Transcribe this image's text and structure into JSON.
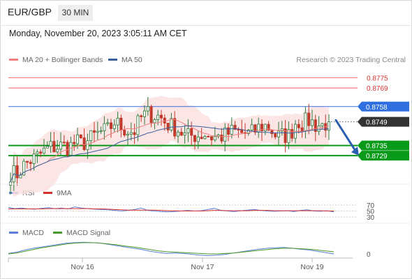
{
  "header": {
    "pair": "EUR/GBP",
    "timeframe": "30 MIN",
    "datetime": "Monday, November 20, 2023 3:05:11 AM CET"
  },
  "legend": {
    "ma20_label": "MA 20 + Bollinger Bands",
    "ma50_label": "MA 50",
    "credit": "Research © 2023 Trading Central"
  },
  "rsi_legend": {
    "rsi_label": "RSI",
    "ma_label": "9MA"
  },
  "macd_legend": {
    "macd_label": "MACD",
    "signal_label": "MACD Signal"
  },
  "colors": {
    "ma20": "#f08080",
    "ma50": "#3a5f9e",
    "bollinger_fill": "#fbe0e0",
    "resistance": "#f06060",
    "pivot": "#3b6fe0",
    "support": "#0a9a1a",
    "up_candle": "#2b7a3a",
    "down_candle": "#c0392b",
    "arrow": "#2a5fb0",
    "rsi": "#5b7fd6",
    "rsi_ma": "#d63030",
    "macd": "#5b7fd6",
    "macd_signal": "#4a9a2a"
  },
  "chart_data": [
    {
      "type": "candlestick",
      "title": "EUR/GBP 30 MIN",
      "x_tick_labels": [
        "Nov 16",
        "Nov 17",
        "Nov 19"
      ],
      "y_range": [
        0.8713,
        0.8781
      ],
      "levels": [
        {
          "label": "0.8775",
          "value": 0.8775,
          "kind": "resistance"
        },
        {
          "label": "0.8769",
          "value": 0.8769,
          "kind": "resistance"
        },
        {
          "label": "0.8758",
          "value": 0.8758,
          "kind": "pivot"
        },
        {
          "label": "0.8749",
          "value": 0.8749,
          "kind": "last"
        },
        {
          "label": "0.8735",
          "value": 0.8735,
          "kind": "support"
        },
        {
          "label": "0.8729",
          "value": 0.8729,
          "kind": "support"
        }
      ],
      "forecast": {
        "from": 0.875,
        "to": 0.8729,
        "direction": "down"
      },
      "close_path": [
        0.8719,
        0.8718,
        0.8723,
        0.8726,
        0.8728,
        0.8731,
        0.8734,
        0.8734,
        0.8735,
        0.8734,
        0.8737,
        0.8736,
        0.8738,
        0.8741,
        0.8743,
        0.8744,
        0.8749,
        0.8746,
        0.8744,
        0.8743,
        0.8751,
        0.8754,
        0.8753,
        0.8752,
        0.8748,
        0.8746,
        0.8744,
        0.874,
        0.8741,
        0.8741,
        0.8742,
        0.874,
        0.874,
        0.8741,
        0.8743,
        0.8743,
        0.8742,
        0.8742,
        0.8745,
        0.8747,
        0.8745,
        0.874,
        0.8741,
        0.8741,
        0.875,
        0.8748,
        0.875,
        0.8747,
        0.8747,
        0.8749
      ]
    },
    {
      "type": "line",
      "title": "RSI",
      "y_tick_labels": [
        "70",
        "50",
        "30"
      ],
      "y_range": [
        20,
        80
      ],
      "series": [
        {
          "name": "RSI",
          "values": [
            62,
            58,
            60,
            57,
            56,
            59,
            61,
            58,
            60,
            57,
            64,
            60,
            58,
            56,
            55,
            54,
            52,
            50,
            52,
            55,
            60,
            52,
            50,
            48,
            47,
            48,
            50,
            52,
            50,
            51,
            55,
            59,
            52,
            50,
            48,
            51,
            53,
            55,
            52,
            50,
            49,
            50,
            51,
            48,
            52,
            54,
            50,
            49,
            51,
            47
          ]
        },
        {
          "name": "9MA",
          "values": [
            57,
            57,
            57,
            57,
            57,
            57,
            58,
            58,
            58,
            58,
            58,
            58,
            58,
            57,
            57,
            56,
            55,
            54,
            53,
            53,
            53,
            53,
            53,
            52,
            51,
            51,
            50,
            50,
            50,
            50,
            51,
            52,
            52,
            51,
            51,
            51,
            51,
            52,
            52,
            52,
            51,
            51,
            51,
            51,
            51,
            51,
            51,
            51,
            50,
            50
          ]
        }
      ]
    },
    {
      "type": "line",
      "title": "MACD",
      "y_tick_labels": [
        "0"
      ],
      "series": [
        {
          "name": "MACD",
          "values": [
            0.1,
            0.4,
            0.9,
            1.3,
            1.6,
            1.9,
            2.2,
            2.5,
            2.6,
            2.7,
            2.6,
            2.5,
            2.2,
            1.9,
            1.6,
            1.3,
            1.0,
            0.6,
            0.3,
            0.1,
            0.2,
            0.1,
            -0.1,
            -0.3,
            -0.4,
            -0.3,
            -0.1,
            0.2,
            0.5,
            0.8,
            1.1,
            1.3,
            1.4,
            1.5,
            1.3,
            1.1,
            0.9,
            0.6,
            0.3,
            0.0
          ]
        },
        {
          "name": "MACD Signal",
          "values": [
            0.0,
            0.2,
            0.6,
            1.0,
            1.4,
            1.7,
            2.0,
            2.3,
            2.5,
            2.6,
            2.6,
            2.5,
            2.3,
            2.1,
            1.8,
            1.6,
            1.3,
            1.0,
            0.7,
            0.5,
            0.4,
            0.3,
            0.2,
            0.1,
            0.0,
            0.0,
            0.1,
            0.2,
            0.4,
            0.6,
            0.8,
            1.0,
            1.2,
            1.3,
            1.3,
            1.2,
            1.1,
            0.9,
            0.7,
            0.5
          ]
        }
      ]
    }
  ]
}
